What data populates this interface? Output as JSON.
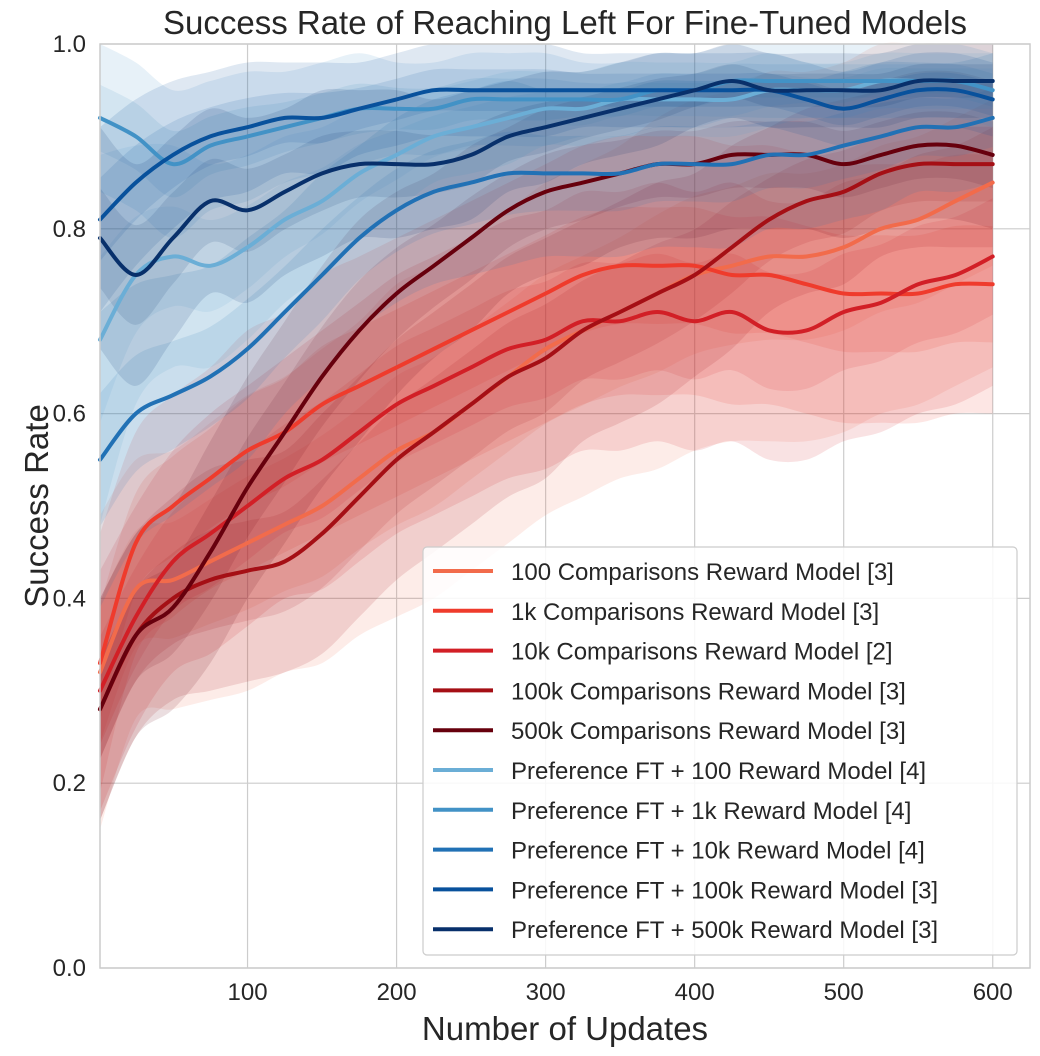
{
  "chart_data": {
    "type": "line",
    "title": "Success Rate of Reaching Left For Fine-Tuned Models",
    "xlabel": "Number of Updates",
    "ylabel": "Success Rate",
    "xlim": [
      1,
      625
    ],
    "ylim": [
      0.0,
      1.0
    ],
    "xticks": [
      100,
      200,
      300,
      400,
      500,
      600
    ],
    "yticks": [
      0.0,
      0.2,
      0.4,
      0.6,
      0.8,
      1.0
    ],
    "xtick_labels": [
      "100",
      "200",
      "300",
      "400",
      "500",
      "600"
    ],
    "ytick_labels": [
      "0.0",
      "0.2",
      "0.4",
      "0.6",
      "0.8",
      "1.0"
    ],
    "grid": true,
    "legend_position": "lower-right",
    "x": [
      1,
      25,
      50,
      75,
      100,
      125,
      150,
      175,
      200,
      225,
      250,
      275,
      300,
      325,
      350,
      375,
      400,
      425,
      450,
      475,
      500,
      525,
      550,
      575,
      600
    ],
    "series": [
      {
        "name": "100 Comparisons Reward Model [3]",
        "color": "#f26b4b",
        "values": [
          0.32,
          0.41,
          0.42,
          0.44,
          0.46,
          0.48,
          0.5,
          0.53,
          0.56,
          0.58,
          0.61,
          0.64,
          0.67,
          0.69,
          0.71,
          0.73,
          0.75,
          0.76,
          0.77,
          0.77,
          0.78,
          0.8,
          0.81,
          0.83,
          0.85
        ],
        "band": [
          0.17,
          0.14,
          0.14,
          0.15,
          0.16,
          0.16,
          0.17,
          0.17,
          0.18,
          0.18,
          0.18,
          0.18,
          0.18,
          0.18,
          0.18,
          0.19,
          0.19,
          0.19,
          0.2,
          0.2,
          0.2,
          0.2,
          0.2,
          0.2,
          0.2
        ]
      },
      {
        "name": "1k Comparisons Reward Model [3]",
        "color": "#ef3b2c",
        "values": [
          0.33,
          0.46,
          0.5,
          0.53,
          0.56,
          0.58,
          0.61,
          0.63,
          0.65,
          0.67,
          0.69,
          0.71,
          0.73,
          0.75,
          0.76,
          0.76,
          0.76,
          0.75,
          0.75,
          0.74,
          0.73,
          0.73,
          0.73,
          0.74,
          0.74
        ],
        "band": [
          0.14,
          0.12,
          0.12,
          0.12,
          0.13,
          0.13,
          0.14,
          0.14,
          0.14,
          0.14,
          0.14,
          0.14,
          0.14,
          0.14,
          0.14,
          0.14,
          0.14,
          0.14,
          0.14,
          0.14,
          0.14,
          0.14,
          0.14,
          0.14,
          0.14
        ]
      },
      {
        "name": "10k Comparisons Reward Model [2]",
        "color": "#d21f26",
        "values": [
          0.3,
          0.38,
          0.44,
          0.47,
          0.5,
          0.53,
          0.55,
          0.58,
          0.61,
          0.63,
          0.65,
          0.67,
          0.68,
          0.7,
          0.7,
          0.71,
          0.7,
          0.71,
          0.69,
          0.69,
          0.71,
          0.72,
          0.74,
          0.75,
          0.77
        ],
        "band": [
          0.13,
          0.12,
          0.12,
          0.13,
          0.13,
          0.13,
          0.14,
          0.14,
          0.14,
          0.14,
          0.14,
          0.14,
          0.14,
          0.14,
          0.14,
          0.14,
          0.14,
          0.14,
          0.14,
          0.14,
          0.14,
          0.14,
          0.14,
          0.14,
          0.14
        ]
      },
      {
        "name": "100k Comparisons Reward Model [3]",
        "color": "#a50f15",
        "values": [
          0.28,
          0.36,
          0.4,
          0.42,
          0.43,
          0.44,
          0.47,
          0.51,
          0.55,
          0.58,
          0.61,
          0.64,
          0.66,
          0.69,
          0.71,
          0.73,
          0.75,
          0.78,
          0.81,
          0.83,
          0.84,
          0.86,
          0.87,
          0.87,
          0.87
        ],
        "band": [
          0.12,
          0.11,
          0.11,
          0.12,
          0.12,
          0.12,
          0.13,
          0.13,
          0.13,
          0.13,
          0.13,
          0.13,
          0.13,
          0.12,
          0.12,
          0.12,
          0.11,
          0.11,
          0.1,
          0.1,
          0.1,
          0.09,
          0.09,
          0.09,
          0.09
        ]
      },
      {
        "name": "500k Comparisons Reward Model [3]",
        "color": "#67000d",
        "values": [
          0.28,
          0.36,
          0.39,
          0.45,
          0.52,
          0.58,
          0.64,
          0.69,
          0.73,
          0.76,
          0.79,
          0.82,
          0.84,
          0.85,
          0.86,
          0.87,
          0.87,
          0.88,
          0.88,
          0.88,
          0.87,
          0.88,
          0.89,
          0.89,
          0.88
        ],
        "band": [
          0.12,
          0.11,
          0.11,
          0.12,
          0.12,
          0.12,
          0.12,
          0.12,
          0.11,
          0.1,
          0.1,
          0.09,
          0.09,
          0.09,
          0.08,
          0.08,
          0.08,
          0.08,
          0.08,
          0.08,
          0.08,
          0.08,
          0.08,
          0.08,
          0.08
        ]
      },
      {
        "name": "Preference FT + 100 Reward Model [4]",
        "color": "#6baed6",
        "values": [
          0.68,
          0.75,
          0.77,
          0.76,
          0.78,
          0.81,
          0.83,
          0.86,
          0.88,
          0.9,
          0.91,
          0.92,
          0.93,
          0.93,
          0.94,
          0.94,
          0.94,
          0.94,
          0.95,
          0.95,
          0.95,
          0.96,
          0.96,
          0.96,
          0.96
        ],
        "band": [
          0.2,
          0.14,
          0.12,
          0.11,
          0.1,
          0.09,
          0.08,
          0.07,
          0.06,
          0.05,
          0.05,
          0.05,
          0.04,
          0.04,
          0.04,
          0.04,
          0.04,
          0.04,
          0.04,
          0.03,
          0.03,
          0.03,
          0.03,
          0.03,
          0.03
        ]
      },
      {
        "name": "Preference FT + 1k Reward Model [4]",
        "color": "#4292c6",
        "values": [
          0.92,
          0.9,
          0.87,
          0.89,
          0.9,
          0.91,
          0.92,
          0.93,
          0.93,
          0.93,
          0.94,
          0.94,
          0.94,
          0.94,
          0.94,
          0.95,
          0.95,
          0.96,
          0.96,
          0.96,
          0.96,
          0.96,
          0.96,
          0.96,
          0.95
        ],
        "band": [
          0.08,
          0.08,
          0.08,
          0.07,
          0.07,
          0.06,
          0.06,
          0.06,
          0.05,
          0.05,
          0.05,
          0.05,
          0.05,
          0.04,
          0.04,
          0.04,
          0.04,
          0.04,
          0.04,
          0.04,
          0.04,
          0.04,
          0.04,
          0.04,
          0.04
        ]
      },
      {
        "name": "Preference FT + 10k Reward Model [4]",
        "color": "#2171b5",
        "values": [
          0.55,
          0.6,
          0.62,
          0.64,
          0.67,
          0.71,
          0.75,
          0.79,
          0.82,
          0.84,
          0.85,
          0.86,
          0.86,
          0.86,
          0.86,
          0.87,
          0.87,
          0.87,
          0.88,
          0.88,
          0.89,
          0.9,
          0.91,
          0.91,
          0.92
        ],
        "band": [
          0.16,
          0.14,
          0.13,
          0.12,
          0.12,
          0.11,
          0.11,
          0.1,
          0.1,
          0.1,
          0.1,
          0.1,
          0.09,
          0.09,
          0.09,
          0.09,
          0.09,
          0.09,
          0.08,
          0.08,
          0.08,
          0.08,
          0.07,
          0.07,
          0.07
        ]
      },
      {
        "name": "Preference FT + 100k Reward Model [3]",
        "color": "#08519c",
        "values": [
          0.81,
          0.85,
          0.88,
          0.9,
          0.91,
          0.92,
          0.92,
          0.93,
          0.94,
          0.95,
          0.95,
          0.95,
          0.95,
          0.95,
          0.95,
          0.95,
          0.95,
          0.95,
          0.95,
          0.94,
          0.93,
          0.94,
          0.95,
          0.95,
          0.94
        ],
        "band": [
          0.1,
          0.09,
          0.08,
          0.07,
          0.07,
          0.06,
          0.06,
          0.05,
          0.05,
          0.05,
          0.05,
          0.05,
          0.05,
          0.04,
          0.04,
          0.04,
          0.04,
          0.04,
          0.04,
          0.04,
          0.04,
          0.04,
          0.04,
          0.04,
          0.04
        ]
      },
      {
        "name": "Preference FT + 500k Reward Model [3]",
        "color": "#08306b",
        "values": [
          0.79,
          0.75,
          0.79,
          0.83,
          0.82,
          0.84,
          0.86,
          0.87,
          0.87,
          0.87,
          0.88,
          0.9,
          0.91,
          0.92,
          0.93,
          0.94,
          0.95,
          0.96,
          0.95,
          0.95,
          0.95,
          0.95,
          0.96,
          0.96,
          0.96
        ],
        "band": [
          0.12,
          0.12,
          0.11,
          0.1,
          0.1,
          0.09,
          0.09,
          0.08,
          0.08,
          0.07,
          0.07,
          0.06,
          0.06,
          0.05,
          0.05,
          0.05,
          0.04,
          0.04,
          0.04,
          0.04,
          0.04,
          0.04,
          0.04,
          0.04,
          0.04
        ]
      }
    ]
  }
}
